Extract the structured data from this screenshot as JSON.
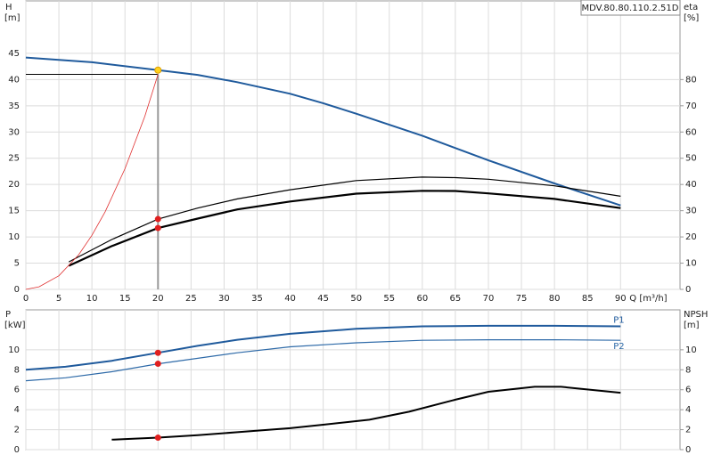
{
  "chart_data": [
    {
      "type": "line",
      "title": "MDV.80.80.110.2.51D",
      "ylabel": "H",
      "yunit": "[m]",
      "y2label": "eta",
      "y2unit": "[%]",
      "xlabel": "Q [m³/h]",
      "xlim": [
        0,
        99
      ],
      "xticks": [
        0,
        5,
        10,
        15,
        20,
        25,
        30,
        35,
        40,
        45,
        50,
        55,
        60,
        65,
        70,
        75,
        80,
        85,
        90
      ],
      "ylim": [
        0,
        55
      ],
      "yticks": [
        0,
        5,
        10,
        15,
        20,
        25,
        30,
        35,
        40,
        45
      ],
      "y2lim": [
        0,
        110
      ],
      "y2ticks": [
        0,
        10,
        20,
        30,
        40,
        50,
        60,
        70,
        80
      ],
      "grid": true,
      "series": [
        {
          "color": "#1f5a9c",
          "width": 2,
          "x": [
            0,
            10,
            20,
            26,
            32,
            40,
            45,
            50,
            60,
            70,
            80,
            90
          ],
          "values": [
            44.2,
            43.3,
            41.8,
            40.9,
            39.5,
            37.3,
            35.5,
            33.5,
            29.3,
            24.6,
            20.2,
            16
          ]
        },
        {
          "color": "#000000",
          "width": 1.2,
          "axis": "y2",
          "x": [
            6.5,
            13,
            20,
            26,
            32,
            40,
            50,
            60,
            65,
            70,
            80,
            90
          ],
          "values": [
            10.5,
            19,
            26.8,
            31,
            34.5,
            38,
            41.5,
            42.8,
            42.6,
            42,
            39.5,
            35.5
          ]
        },
        {
          "color": "#000000",
          "width": 2.2,
          "axis": "y2",
          "x": [
            6.5,
            13,
            20,
            26,
            32,
            40,
            50,
            60,
            65,
            70,
            80,
            90
          ],
          "values": [
            9,
            16.5,
            23.4,
            27,
            30.5,
            33.5,
            36.5,
            37.6,
            37.5,
            36.6,
            34.5,
            31
          ]
        },
        {
          "color": "#e03030",
          "width": 0.8,
          "x": [
            0,
            2,
            5,
            8,
            10,
            12,
            15,
            18,
            20
          ],
          "values": [
            0,
            0.5,
            2.6,
            6.6,
            10.3,
            14.8,
            23,
            33,
            41
          ]
        }
      ],
      "guide": {
        "x": 20,
        "y": 41
      },
      "points": [
        {
          "x": 20,
          "y": 26.8,
          "axis": "y2",
          "color": "#e02020"
        },
        {
          "x": 20,
          "y": 23.4,
          "axis": "y2",
          "color": "#e02020"
        },
        {
          "x": 20,
          "y": 41.8,
          "color": "#ffd21f"
        }
      ]
    },
    {
      "type": "line",
      "ylabel": "P",
      "yunit": "[kW]",
      "y2label": "NPSH",
      "y2unit": "[m]",
      "xlim": [
        0,
        99
      ],
      "xticks": [
        0,
        5,
        10,
        15,
        20,
        25,
        30,
        35,
        40,
        45,
        50,
        55,
        60,
        65,
        70,
        75,
        80,
        85,
        90
      ],
      "ylim": [
        0,
        14
      ],
      "yticks": [
        0,
        2,
        4,
        6,
        8,
        10
      ],
      "y2lim": [
        0,
        14
      ],
      "y2ticks": [
        0,
        2,
        4,
        6,
        8,
        10
      ],
      "grid": true,
      "series": [
        {
          "name": "P1",
          "color": "#1f5a9c",
          "width": 2,
          "x": [
            0,
            6,
            13,
            20,
            26,
            32,
            40,
            50,
            60,
            70,
            80,
            90
          ],
          "values": [
            8.0,
            8.3,
            8.9,
            9.7,
            10.4,
            11.0,
            11.6,
            12.1,
            12.35,
            12.4,
            12.4,
            12.35
          ]
        },
        {
          "name": "P2",
          "color": "#2e6aa8",
          "width": 1.2,
          "x": [
            0,
            6,
            13,
            20,
            32,
            40,
            50,
            60,
            70,
            80,
            90
          ],
          "values": [
            6.9,
            7.2,
            7.8,
            8.6,
            9.7,
            10.3,
            10.7,
            10.95,
            11.0,
            11.0,
            10.95
          ]
        },
        {
          "color": "#000000",
          "width": 2,
          "axis": "y2",
          "x": [
            13,
            20,
            26,
            32,
            40,
            45,
            52,
            58,
            65,
            70,
            77,
            81,
            90
          ],
          "values": [
            1.0,
            1.2,
            1.45,
            1.75,
            2.15,
            2.5,
            3.0,
            3.8,
            5.0,
            5.8,
            6.3,
            6.3,
            5.7
          ]
        }
      ],
      "points": [
        {
          "x": 20,
          "y": 9.7,
          "color": "#e02020"
        },
        {
          "x": 20,
          "y": 8.6,
          "color": "#e02020"
        },
        {
          "x": 20,
          "y": 1.2,
          "axis": "y2",
          "color": "#e02020"
        }
      ]
    }
  ]
}
